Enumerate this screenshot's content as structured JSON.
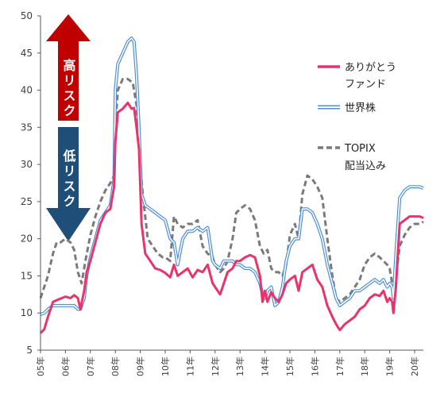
{
  "chart_data": {
    "type": "line",
    "title": "",
    "xlabel": "",
    "ylabel": "",
    "ylim": [
      5,
      50
    ],
    "yticks": [
      5,
      10,
      15,
      20,
      25,
      30,
      35,
      40,
      45,
      50
    ],
    "xlim": [
      2005.0,
      2020.35
    ],
    "xtick_labels": [
      "05年",
      "06年",
      "07年",
      "08年",
      "09年",
      "10年",
      "11年",
      "12年",
      "13年",
      "14年",
      "15年",
      "16年",
      "17年",
      "18年",
      "19年",
      "20年"
    ],
    "grid": false,
    "legend_position": "right",
    "legend": [
      {
        "series_id": "arigatou",
        "lines": [
          "ありがとう",
          "ファンド"
        ]
      },
      {
        "series_id": "sekai",
        "lines": [
          "世界株"
        ]
      },
      {
        "series_id": "topix",
        "lines": [
          "TOPIX",
          "配当込み"
        ]
      }
    ],
    "annotations": {
      "high_risk": "高リスク",
      "low_risk": "低リスク"
    },
    "colors": {
      "arigatou": "#e8336b",
      "sekai": "#4f8fd6",
      "topix": "#7a7a7a",
      "high_risk_arrow": "#c00000",
      "low_risk_arrow": "#1f4e79",
      "axis": "#595959"
    },
    "series": [
      {
        "id": "arigatou",
        "style": "solid",
        "x": [
          2005.0,
          2005.15,
          2005.3,
          2005.5,
          2005.7,
          2005.85,
          2006.0,
          2006.2,
          2006.35,
          2006.5,
          2006.6,
          2006.75,
          2006.85,
          2007.0,
          2007.2,
          2007.4,
          2007.6,
          2007.8,
          2007.95,
          2008.0,
          2008.1,
          2008.3,
          2008.5,
          2008.65,
          2008.75,
          2008.85,
          2008.95,
          2009.05,
          2009.2,
          2009.4,
          2009.6,
          2009.8,
          2010.0,
          2010.2,
          2010.35,
          2010.5,
          2010.7,
          2010.9,
          2011.1,
          2011.3,
          2011.5,
          2011.7,
          2011.9,
          2012.0,
          2012.2,
          2012.35,
          2012.5,
          2012.7,
          2012.85,
          2013.0,
          2013.2,
          2013.4,
          2013.6,
          2013.8,
          2013.9,
          2014.0,
          2014.1,
          2014.25,
          2014.4,
          2014.55,
          2014.7,
          2014.85,
          2015.0,
          2015.2,
          2015.35,
          2015.5,
          2015.7,
          2015.9,
          2016.1,
          2016.3,
          2016.5,
          2016.7,
          2016.85,
          2017.0,
          2017.2,
          2017.4,
          2017.6,
          2017.8,
          2018.0,
          2018.2,
          2018.4,
          2018.6,
          2018.75,
          2018.9,
          2019.0,
          2019.1,
          2019.15,
          2019.25,
          2019.4,
          2019.6,
          2019.8,
          2020.0,
          2020.2,
          2020.35
        ],
        "values": [
          7.3,
          7.8,
          9.5,
          11.5,
          11.8,
          12.0,
          12.2,
          12.0,
          12.4,
          12.0,
          10.5,
          13.0,
          15.5,
          17.0,
          19.5,
          22.0,
          23.5,
          24.0,
          27.0,
          33.0,
          37.0,
          37.5,
          38.3,
          37.5,
          37.6,
          35.0,
          32.0,
          22.0,
          18.0,
          17.0,
          16.0,
          15.8,
          15.4,
          14.8,
          16.5,
          15.0,
          15.5,
          16.0,
          14.8,
          15.8,
          15.5,
          16.5,
          14.0,
          13.5,
          12.5,
          14.0,
          15.5,
          16.0,
          17.0,
          17.0,
          17.5,
          17.8,
          17.5,
          15.0,
          11.5,
          13.0,
          11.5,
          12.8,
          12.0,
          11.5,
          12.5,
          14.0,
          14.5,
          15.0,
          13.0,
          15.5,
          16.0,
          16.5,
          14.5,
          13.5,
          11.0,
          9.5,
          8.5,
          7.7,
          8.5,
          9.0,
          9.5,
          10.5,
          11.0,
          12.0,
          12.5,
          12.3,
          13.0,
          11.5,
          12.0,
          11.5,
          10.0,
          13.5,
          22.0,
          22.5,
          23.0,
          23.0,
          23.0,
          22.8
        ]
      },
      {
        "id": "sekai",
        "style": "double",
        "x": [
          2005.0,
          2005.15,
          2005.3,
          2005.5,
          2005.7,
          2005.85,
          2006.0,
          2006.2,
          2006.35,
          2006.5,
          2006.6,
          2006.75,
          2006.85,
          2007.0,
          2007.2,
          2007.4,
          2007.6,
          2007.8,
          2007.95,
          2008.0,
          2008.1,
          2008.3,
          2008.5,
          2008.65,
          2008.75,
          2008.85,
          2008.95,
          2009.05,
          2009.2,
          2009.4,
          2009.6,
          2009.8,
          2010.0,
          2010.2,
          2010.35,
          2010.5,
          2010.7,
          2010.9,
          2011.1,
          2011.3,
          2011.5,
          2011.7,
          2011.9,
          2012.0,
          2012.2,
          2012.35,
          2012.5,
          2012.7,
          2012.85,
          2013.0,
          2013.2,
          2013.4,
          2013.6,
          2013.8,
          2013.9,
          2014.0,
          2014.1,
          2014.25,
          2014.4,
          2014.55,
          2014.7,
          2014.85,
          2015.0,
          2015.2,
          2015.35,
          2015.5,
          2015.7,
          2015.9,
          2016.1,
          2016.3,
          2016.5,
          2016.7,
          2016.85,
          2017.0,
          2017.2,
          2017.4,
          2017.6,
          2017.8,
          2018.0,
          2018.2,
          2018.4,
          2018.6,
          2018.75,
          2018.9,
          2019.0,
          2019.1,
          2019.15,
          2019.25,
          2019.4,
          2019.6,
          2019.8,
          2020.0,
          2020.2,
          2020.35
        ],
        "values": [
          9.8,
          10.0,
          10.5,
          11.0,
          11.0,
          11.0,
          11.0,
          11.0,
          11.0,
          10.5,
          10.5,
          12.0,
          15.0,
          17.5,
          20.0,
          22.5,
          23.5,
          24.5,
          28.0,
          40.0,
          43.5,
          45.0,
          46.5,
          47.0,
          46.5,
          42.0,
          35.0,
          26.0,
          24.5,
          24.0,
          23.5,
          23.0,
          22.5,
          20.0,
          19.5,
          16.5,
          20.0,
          21.0,
          21.0,
          21.5,
          21.0,
          21.5,
          17.0,
          16.5,
          16.0,
          17.0,
          17.0,
          17.0,
          16.5,
          16.5,
          16.0,
          16.0,
          15.5,
          14.0,
          12.5,
          12.0,
          13.0,
          13.5,
          11.0,
          11.5,
          13.5,
          17.0,
          19.0,
          20.0,
          20.0,
          24.0,
          24.0,
          23.5,
          22.0,
          20.0,
          16.5,
          14.0,
          12.0,
          11.0,
          11.5,
          12.0,
          13.0,
          13.0,
          13.5,
          14.0,
          14.5,
          14.0,
          14.5,
          13.5,
          14.0,
          13.5,
          12.0,
          18.0,
          25.5,
          26.5,
          27.0,
          27.0,
          27.0,
          26.8
        ]
      },
      {
        "id": "topix",
        "style": "dashed",
        "x": [
          2005.0,
          2005.15,
          2005.3,
          2005.5,
          2005.65,
          2005.8,
          2006.0,
          2006.2,
          2006.35,
          2006.5,
          2006.65,
          2006.8,
          2007.0,
          2007.2,
          2007.4,
          2007.6,
          2007.8,
          2007.95,
          2008.0,
          2008.1,
          2008.3,
          2008.5,
          2008.7,
          2008.85,
          2009.0,
          2009.1,
          2009.3,
          2009.5,
          2009.7,
          2009.9,
          2010.0,
          2010.2,
          2010.35,
          2010.5,
          2010.7,
          2010.9,
          2011.1,
          2011.3,
          2011.5,
          2011.7,
          2011.9,
          2012.0,
          2012.2,
          2012.35,
          2012.5,
          2012.7,
          2012.85,
          2013.0,
          2013.2,
          2013.4,
          2013.6,
          2013.8,
          2013.95,
          2014.1,
          2014.25,
          2014.4,
          2014.55,
          2014.7,
          2014.85,
          2015.0,
          2015.2,
          2015.35,
          2015.5,
          2015.7,
          2015.9,
          2016.1,
          2016.3,
          2016.5,
          2016.7,
          2016.85,
          2017.0,
          2017.2,
          2017.4,
          2017.6,
          2017.8,
          2018.0,
          2018.2,
          2018.4,
          2018.6,
          2018.75,
          2018.9,
          2019.0,
          2019.1,
          2019.2,
          2019.4,
          2019.6,
          2019.8,
          2020.0,
          2020.2,
          2020.35
        ],
        "values": [
          12.0,
          13.5,
          15.0,
          18.0,
          19.5,
          19.5,
          20.0,
          19.5,
          18.5,
          15.5,
          14.0,
          17.0,
          20.5,
          23.0,
          25.0,
          26.5,
          27.5,
          28.5,
          35.0,
          40.0,
          41.5,
          41.5,
          41.0,
          38.0,
          30.0,
          26.0,
          20.0,
          19.0,
          18.0,
          17.5,
          17.5,
          17.0,
          23.0,
          22.0,
          21.5,
          22.0,
          22.0,
          22.5,
          19.0,
          18.0,
          17.5,
          16.5,
          15.5,
          16.0,
          17.0,
          20.0,
          23.5,
          24.0,
          24.5,
          24.0,
          22.5,
          19.0,
          18.0,
          18.5,
          16.0,
          15.5,
          15.5,
          15.0,
          16.5,
          20.5,
          22.0,
          20.0,
          26.0,
          28.5,
          28.0,
          27.0,
          25.5,
          20.0,
          15.0,
          12.0,
          11.5,
          12.0,
          12.5,
          13.5,
          14.5,
          16.5,
          17.5,
          18.0,
          17.5,
          17.0,
          16.5,
          16.0,
          14.0,
          13.5,
          19.0,
          20.5,
          21.5,
          22.0,
          22.0,
          22.3
        ]
      }
    ]
  }
}
